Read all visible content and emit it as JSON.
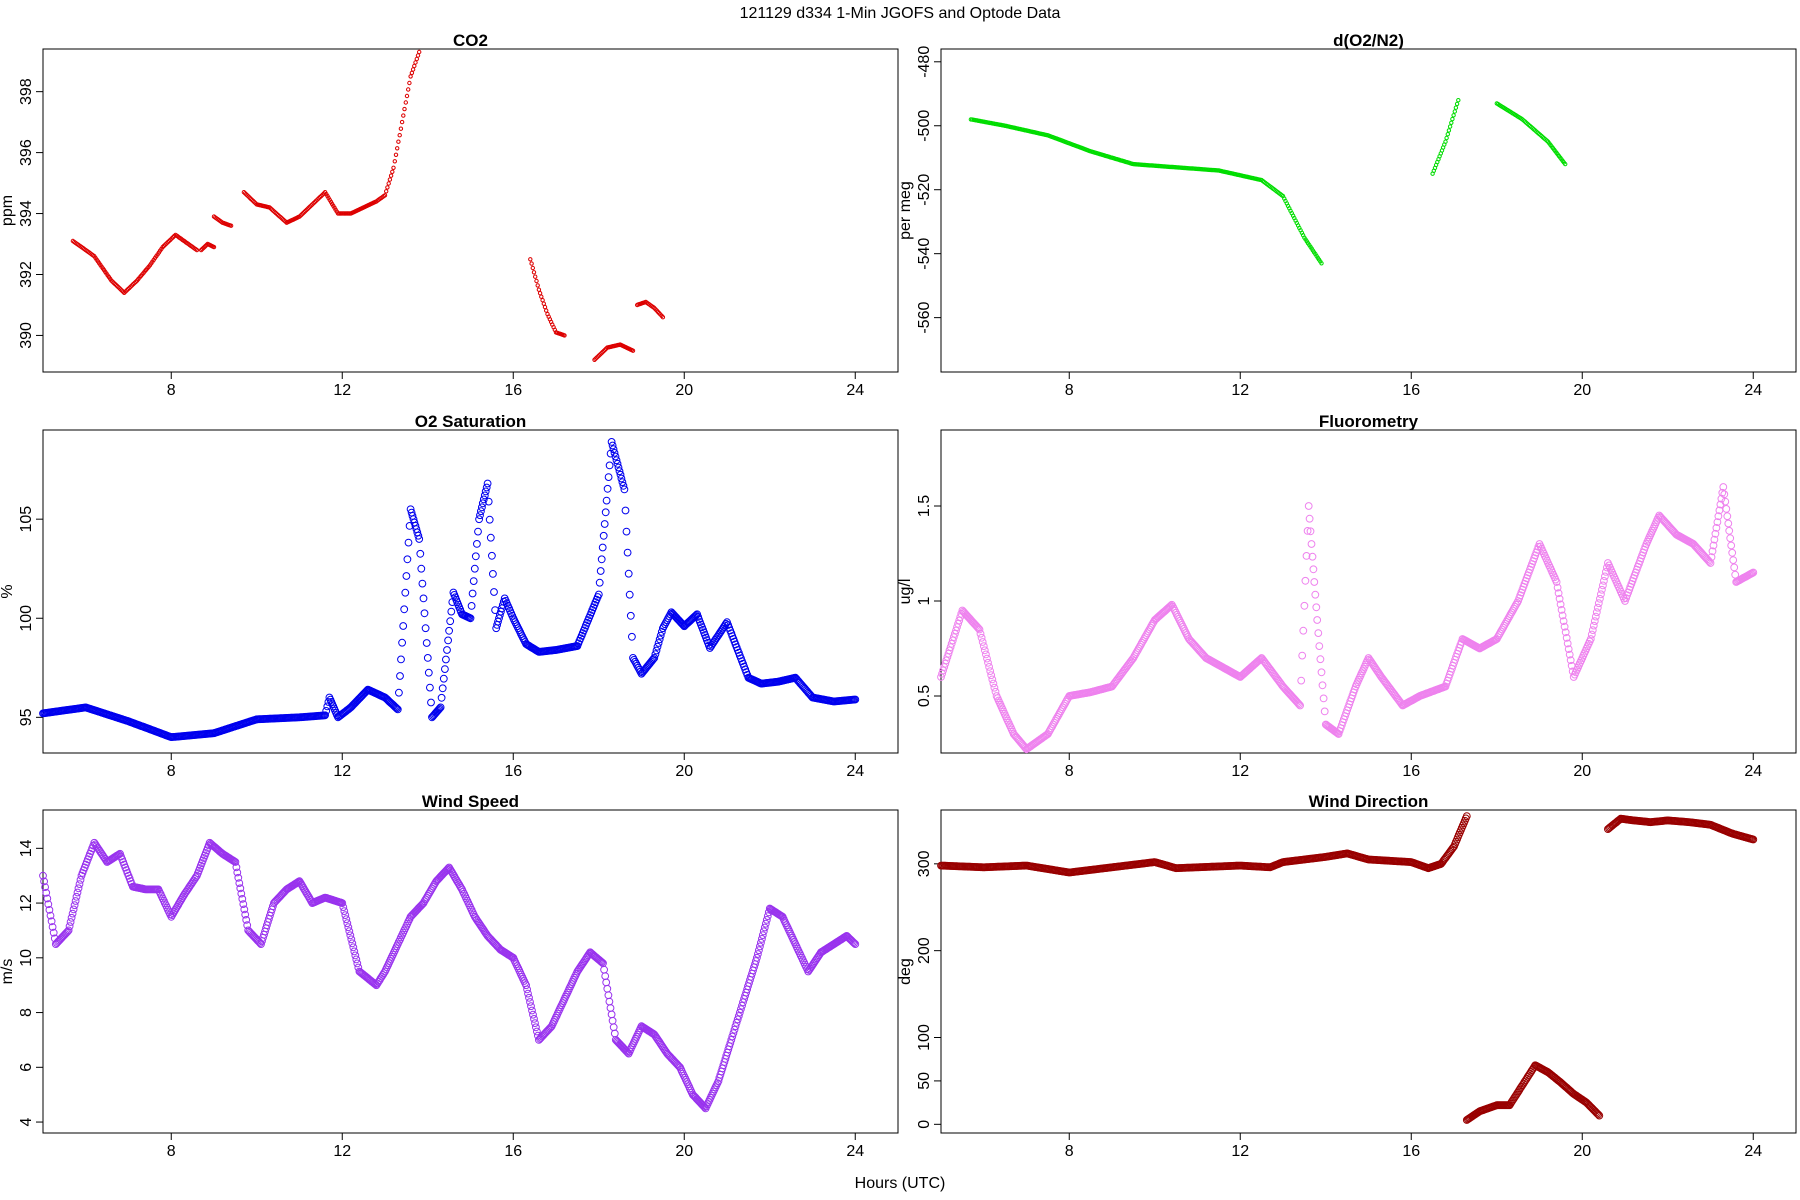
{
  "page": {
    "title": "121129   d334   1-Min  JGOFS and Optode Data",
    "xlabel": "Hours (UTC)"
  },
  "chart_data": [
    {
      "type": "scatter",
      "title": "CO2",
      "xlabel": "",
      "ylabel": "ppm",
      "color": "#dd0000",
      "marker_size": "small",
      "xlim": [
        5,
        25
      ],
      "ylim": [
        388.8,
        399.4
      ],
      "xticks": [
        8,
        12,
        16,
        20,
        24
      ],
      "yticks": [
        390,
        392,
        394,
        396,
        398
      ],
      "grid": false,
      "series": [
        {
          "x": [
            5.7,
            6.2,
            6.6,
            6.9,
            7.2,
            7.5,
            7.8,
            8.1,
            8.4,
            8.6
          ],
          "y": [
            393.1,
            392.6,
            391.8,
            391.4,
            391.8,
            392.3,
            392.9,
            393.3,
            393.0,
            392.8
          ]
        },
        {
          "x": [
            8.7,
            8.85,
            9.0
          ],
          "y": [
            392.8,
            393.0,
            392.9
          ]
        },
        {
          "x": [
            9.0,
            9.2,
            9.4
          ],
          "y": [
            393.9,
            393.7,
            393.6
          ]
        },
        {
          "x": [
            9.7,
            10.0,
            10.3,
            10.7,
            11.0,
            11.3,
            11.6,
            11.9,
            12.2,
            12.5,
            12.8,
            13.0,
            13.2,
            13.4,
            13.6,
            13.8
          ],
          "y": [
            394.7,
            394.3,
            394.2,
            393.7,
            393.9,
            394.3,
            394.7,
            394.0,
            394.0,
            394.2,
            394.4,
            394.6,
            395.5,
            397.0,
            398.5,
            399.3
          ]
        },
        {
          "x": [
            16.4,
            16.6,
            16.8,
            17.0,
            17.2
          ],
          "y": [
            392.5,
            391.5,
            390.7,
            390.1,
            390.0
          ]
        },
        {
          "x": [
            17.9,
            18.2,
            18.5,
            18.8
          ],
          "y": [
            389.2,
            389.6,
            389.7,
            389.5
          ]
        },
        {
          "x": [
            18.9,
            19.1,
            19.3,
            19.5
          ],
          "y": [
            391.0,
            391.1,
            390.9,
            390.6
          ]
        }
      ]
    },
    {
      "type": "scatter",
      "title": "d(O2/N2)",
      "xlabel": "",
      "ylabel": "per meg",
      "color": "#00dd00",
      "marker_size": "small",
      "xlim": [
        5,
        25
      ],
      "ylim": [
        -577,
        -476
      ],
      "xticks": [
        8,
        12,
        16,
        20,
        24
      ],
      "yticks": [
        -480,
        -500,
        -520,
        -540,
        -560
      ],
      "grid": false,
      "series": [
        {
          "x": [
            5.7,
            6.5,
            7.5,
            8.5,
            9.5,
            10.5,
            11.5,
            12.5,
            13.0,
            13.5,
            13.9
          ],
          "y": [
            -498,
            -500,
            -503,
            -508,
            -512,
            -513,
            -514,
            -517,
            -522,
            -535,
            -543
          ]
        },
        {
          "x": [
            16.5,
            16.8,
            17.1
          ],
          "y": [
            -515,
            -505,
            -492
          ]
        },
        {
          "x": [
            18.0,
            18.6,
            19.2,
            19.6
          ],
          "y": [
            -493,
            -498,
            -505,
            -512
          ]
        }
      ]
    },
    {
      "type": "scatter",
      "title": "O2 Saturation",
      "xlabel": "",
      "ylabel": "%",
      "color": "#0000ee",
      "marker_size": "large",
      "xlim": [
        5,
        25
      ],
      "ylim": [
        93.2,
        109.5
      ],
      "xticks": [
        8,
        12,
        16,
        20,
        24
      ],
      "yticks": [
        95,
        100,
        105
      ],
      "grid": false,
      "series": [
        {
          "x": [
            5.0,
            6.0,
            7.0,
            8.0,
            9.0,
            10.0,
            11.0,
            11.6,
            11.7,
            11.9,
            12.2,
            12.6,
            13.0,
            13.3,
            13.6,
            13.8,
            14.1,
            14.3,
            14.6,
            14.8,
            15.0,
            15.2,
            15.4,
            15.6,
            15.8,
            16.0,
            16.3,
            16.6,
            17.0,
            17.5,
            18.0,
            18.3,
            18.6,
            18.8,
            19.0,
            19.3,
            19.5,
            19.7,
            20.0,
            20.3,
            20.6,
            21.0,
            21.5,
            21.8,
            22.2,
            22.6,
            23.0,
            23.5,
            24.0
          ],
          "y": [
            95.2,
            95.5,
            94.8,
            94.0,
            94.2,
            94.9,
            95.0,
            95.1,
            96.0,
            95.0,
            95.5,
            96.4,
            96.0,
            95.4,
            105.5,
            104.0,
            95.0,
            95.5,
            101.3,
            100.2,
            100.0,
            105.0,
            106.8,
            99.5,
            101.0,
            100.0,
            98.7,
            98.3,
            98.4,
            98.6,
            101.2,
            108.9,
            106.5,
            98.0,
            97.2,
            98.0,
            99.5,
            100.3,
            99.6,
            100.2,
            98.5,
            99.8,
            97.0,
            96.7,
            96.8,
            97.0,
            96.0,
            95.8,
            95.9
          ]
        }
      ]
    },
    {
      "type": "scatter",
      "title": "Fluorometry",
      "xlabel": "",
      "ylabel": "ug/l",
      "color": "#ee82ee",
      "marker_size": "large",
      "xlim": [
        5,
        25
      ],
      "ylim": [
        0.2,
        1.9
      ],
      "xticks": [
        8,
        12,
        16,
        20,
        24
      ],
      "yticks": [
        0.5,
        1.0,
        1.5
      ],
      "grid": false,
      "series": [
        {
          "x": [
            5.0,
            5.5,
            5.9,
            6.3,
            6.7,
            7.0,
            7.5,
            8.0,
            8.5,
            9.0,
            9.5,
            10.0,
            10.4,
            10.8,
            11.2,
            11.6,
            12.0,
            12.5,
            13.0,
            13.4,
            13.6,
            13.8,
            14.0,
            14.3,
            14.7,
            15.0,
            15.3,
            15.8,
            16.2,
            16.8,
            17.2,
            17.6,
            18.0,
            18.5,
            19.0,
            19.4,
            19.8,
            20.2,
            20.6,
            21.0,
            21.5,
            21.8,
            22.2,
            22.6,
            23.0,
            23.3,
            23.6,
            24.0
          ],
          "y": [
            0.6,
            0.95,
            0.85,
            0.5,
            0.3,
            0.22,
            0.3,
            0.5,
            0.52,
            0.55,
            0.7,
            0.9,
            0.98,
            0.8,
            0.7,
            0.65,
            0.6,
            0.7,
            0.55,
            0.45,
            1.5,
            0.9,
            0.35,
            0.3,
            0.55,
            0.7,
            0.6,
            0.45,
            0.5,
            0.55,
            0.8,
            0.75,
            0.8,
            1.0,
            1.3,
            1.1,
            0.6,
            0.8,
            1.2,
            1.0,
            1.3,
            1.45,
            1.35,
            1.3,
            1.2,
            1.6,
            1.1,
            1.15
          ]
        }
      ]
    },
    {
      "type": "scatter",
      "title": "Wind Speed",
      "xlabel": "",
      "ylabel": "m/s",
      "color": "#9933ee",
      "marker_size": "large",
      "xlim": [
        5,
        25
      ],
      "ylim": [
        3.6,
        15.4
      ],
      "xticks": [
        8,
        12,
        16,
        20,
        24
      ],
      "yticks": [
        4,
        6,
        8,
        10,
        12,
        14
      ],
      "grid": false,
      "series": [
        {
          "x": [
            5.0,
            5.3,
            5.6,
            5.9,
            6.2,
            6.5,
            6.8,
            7.1,
            7.4,
            7.7,
            8.0,
            8.3,
            8.6,
            8.9,
            9.2,
            9.5,
            9.8,
            10.1,
            10.4,
            10.7,
            11.0,
            11.3,
            11.6,
            12.0,
            12.4,
            12.8,
            13.0,
            13.3,
            13.6,
            13.9,
            14.2,
            14.5,
            14.8,
            15.1,
            15.4,
            15.7,
            16.0,
            16.3,
            16.6,
            16.9,
            17.2,
            17.5,
            17.8,
            18.1,
            18.4,
            18.7,
            19.0,
            19.3,
            19.6,
            19.9,
            20.2,
            20.5,
            20.8,
            21.1,
            21.4,
            21.7,
            22.0,
            22.3,
            22.6,
            22.9,
            23.2,
            23.5,
            23.8,
            24.0
          ],
          "y": [
            13.0,
            10.5,
            11.0,
            13.0,
            14.2,
            13.5,
            13.8,
            12.6,
            12.5,
            12.5,
            11.5,
            12.3,
            13.0,
            14.2,
            13.8,
            13.5,
            11.0,
            10.5,
            12.0,
            12.5,
            12.8,
            12.0,
            12.2,
            12.0,
            9.5,
            9.0,
            9.5,
            10.5,
            11.5,
            12.0,
            12.8,
            13.3,
            12.5,
            11.5,
            10.8,
            10.3,
            10.0,
            9.0,
            7.0,
            7.5,
            8.5,
            9.5,
            10.2,
            9.8,
            7.0,
            6.5,
            7.5,
            7.2,
            6.5,
            6.0,
            5.0,
            4.5,
            5.5,
            7.0,
            8.5,
            10.0,
            11.8,
            11.5,
            10.5,
            9.5,
            10.2,
            10.5,
            10.8,
            10.5
          ]
        }
      ]
    },
    {
      "type": "scatter",
      "title": "Wind Direction",
      "xlabel": "",
      "ylabel": "deg",
      "color": "#990000",
      "marker_size": "large",
      "xlim": [
        5,
        25
      ],
      "ylim": [
        -10,
        362
      ],
      "xticks": [
        8,
        12,
        16,
        20,
        24
      ],
      "yticks": [
        0,
        50,
        100,
        200,
        300
      ],
      "grid": false,
      "series": [
        {
          "x": [
            5.0,
            6.0,
            7.0,
            8.0,
            8.5,
            9.0,
            10.0,
            10.5,
            11.0,
            12.0,
            12.7,
            13.0,
            14.0,
            14.5,
            15.0,
            16.0,
            16.4,
            16.7,
            17.0,
            17.3
          ],
          "y": [
            298,
            296,
            298,
            290,
            293,
            296,
            302,
            295,
            296,
            298,
            296,
            302,
            308,
            312,
            305,
            302,
            295,
            300,
            320,
            355
          ]
        },
        {
          "x": [
            17.3,
            17.6,
            18.0,
            18.3,
            18.6,
            18.9,
            19.2,
            19.5,
            19.8,
            20.1,
            20.4
          ],
          "y": [
            5,
            15,
            22,
            22,
            45,
            68,
            60,
            48,
            35,
            25,
            10
          ]
        },
        {
          "x": [
            20.6,
            20.9,
            21.2,
            21.6,
            22.0,
            22.5,
            23.0,
            23.5,
            24.0
          ],
          "y": [
            340,
            352,
            350,
            348,
            350,
            348,
            345,
            335,
            328
          ]
        }
      ]
    }
  ]
}
